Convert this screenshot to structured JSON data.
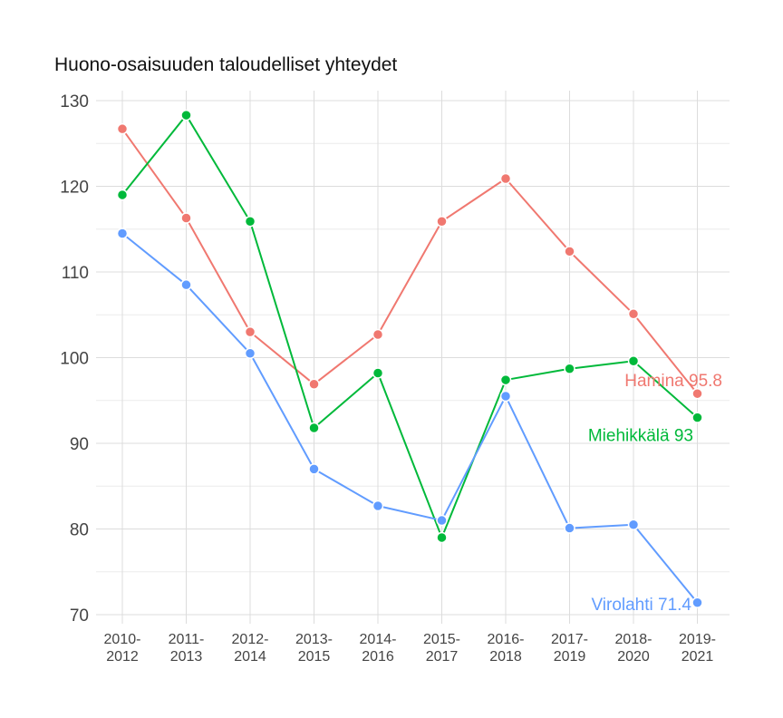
{
  "chart_data": {
    "type": "line",
    "title": "Huono-osaisuuden taloudelliset yhteydet",
    "xlabel": "",
    "ylabel": "",
    "ylim": [
      70,
      130
    ],
    "yticks": [
      70,
      80,
      90,
      100,
      110,
      120,
      130
    ],
    "grid": true,
    "categories": [
      [
        "2010-",
        "2012"
      ],
      [
        "2011-",
        "2013"
      ],
      [
        "2012-",
        "2014"
      ],
      [
        "2013-",
        "2015"
      ],
      [
        "2014-",
        "2016"
      ],
      [
        "2015-",
        "2017"
      ],
      [
        "2016-",
        "2018"
      ],
      [
        "2017-",
        "2019"
      ],
      [
        "2018-",
        "2020"
      ],
      [
        "2019-",
        "2021"
      ]
    ],
    "series": [
      {
        "name": "Hamina",
        "color": "#f07870",
        "values": [
          126.7,
          116.3,
          103.0,
          96.9,
          102.7,
          115.9,
          120.9,
          112.4,
          105.1,
          95.8
        ],
        "end_label": "Hamina 95.8"
      },
      {
        "name": "Miehikkälä",
        "color": "#00b93a",
        "values": [
          119.0,
          128.3,
          115.9,
          91.8,
          98.2,
          79.0,
          97.4,
          98.7,
          99.6,
          93.0
        ],
        "end_label": "Miehikkälä 93"
      },
      {
        "name": "Virolahti",
        "color": "#619cff",
        "values": [
          114.5,
          108.5,
          100.5,
          87.0,
          82.7,
          81.0,
          95.5,
          80.1,
          80.5,
          71.4
        ],
        "end_label": "Virolahti 71.4"
      }
    ]
  }
}
